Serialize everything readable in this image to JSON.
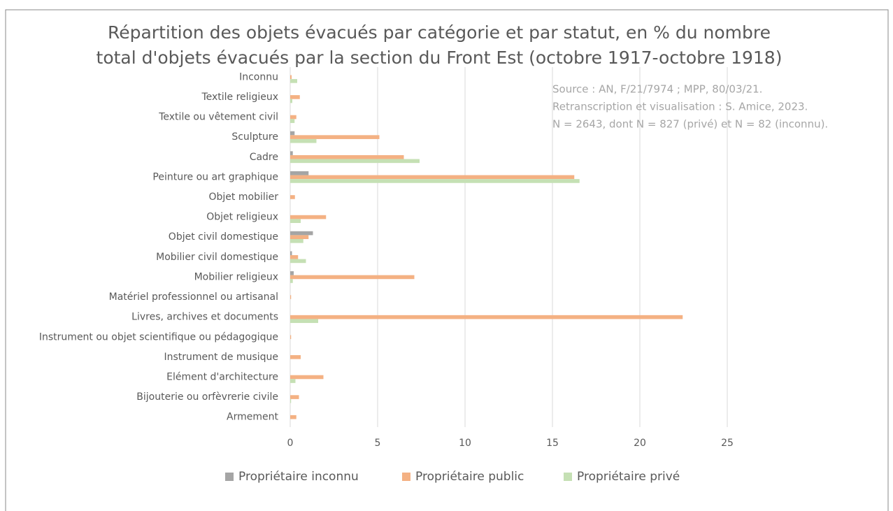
{
  "chart_data": {
    "type": "bar",
    "orientation": "horizontal",
    "title": [
      "Répartition des objets évacués par catégorie et par statut, en % du nombre",
      "total d'objets évacués par la section du Front Est (octobre 1917-octobre 1918)"
    ],
    "annotation": [
      "Source : AN, F/21/7974 ; MPP, 80/03/21.",
      "Retranscription et visualisation : S. Amice, 2023.",
      "N =  2643, dont N = 827 (privé) et N = 82 (inconnu)."
    ],
    "categories": [
      "Inconnu",
      "Textile religieux",
      "Textile ou vêtement civil",
      "Sculpture",
      "Cadre",
      "Peinture ou art graphique",
      "Objet mobilier",
      "Objet religieux",
      "Objet civil domestique",
      "Mobilier civil domestique",
      "Mobilier religieux",
      "Matériel professionnel ou artisanal",
      "Livres, archives et documents",
      "Instrument ou objet scientifique ou pédagogique",
      "Instrument de musique",
      "Elément d'architecture",
      "Bijouterie ou orfèvrerie civile",
      "Armement"
    ],
    "series": [
      {
        "name": "Propriétaire inconnu",
        "color": "#a5a5a5",
        "values": [
          0,
          0,
          0,
          0.25,
          0.15,
          1.05,
          0,
          0,
          1.3,
          0.1,
          0.2,
          0,
          0,
          0,
          0,
          0,
          0,
          0
        ]
      },
      {
        "name": "Propriétaire public",
        "color": "#f4b183",
        "values": [
          0.08,
          0.55,
          0.35,
          5.1,
          6.5,
          16.25,
          0.27,
          2.05,
          1.05,
          0.45,
          7.1,
          0.05,
          22.45,
          0.05,
          0.6,
          1.9,
          0.5,
          0.35
        ]
      },
      {
        "name": "Propriétaire privé",
        "color": "#c5e0b4",
        "values": [
          0.4,
          0.12,
          0.25,
          1.5,
          7.4,
          16.55,
          0,
          0.6,
          0.75,
          0.9,
          0.15,
          0,
          1.6,
          0,
          0,
          0.3,
          0.05,
          0
        ]
      }
    ],
    "xlim": [
      0,
      25
    ],
    "xticks": [
      0,
      5,
      10,
      15,
      20,
      25
    ],
    "grid": true,
    "legend": "bottom"
  }
}
